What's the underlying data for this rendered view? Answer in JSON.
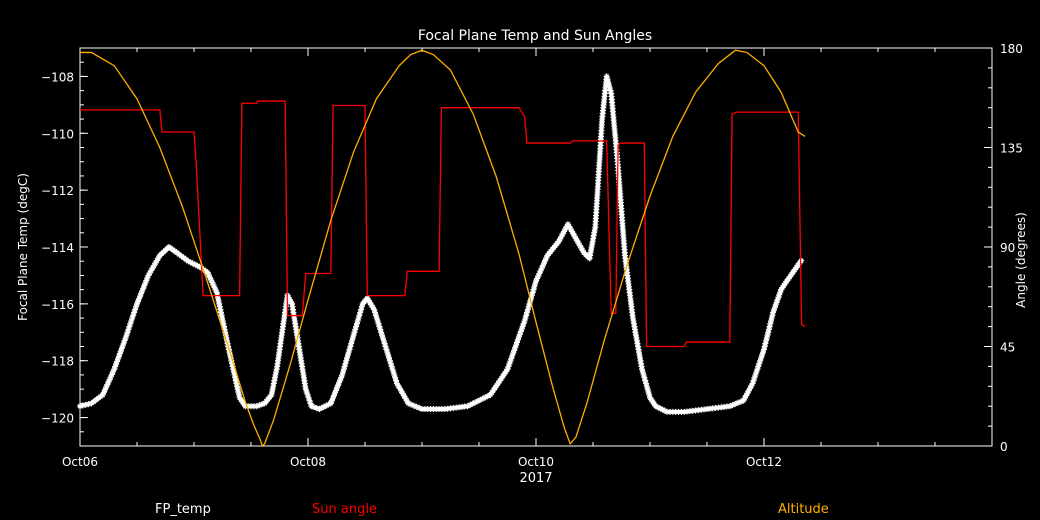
{
  "chart_data": {
    "type": "line",
    "title": "Focal Plane Temp and Sun Angles",
    "xlabel": "2017",
    "ylabel_left": "Focal Plane Temp (degC)",
    "ylabel_right": "Angle (degrees)",
    "xlim": [
      0,
      8
    ],
    "ylim_left": [
      -121,
      -107
    ],
    "ylim_right": [
      0,
      180
    ],
    "x_ticks": [
      {
        "x": 0,
        "label": "Oct06"
      },
      {
        "x": 2,
        "label": "Oct08"
      },
      {
        "x": 4,
        "label": "Oct10"
      },
      {
        "x": 6,
        "label": "Oct12"
      }
    ],
    "y_ticks_left": [
      "-108",
      "-110",
      "-112",
      "-114",
      "-116",
      "-118",
      "-120"
    ],
    "y_ticks_right": [
      "180",
      "135",
      "90",
      "45",
      "0"
    ],
    "series": [
      {
        "name": "FP_temp",
        "axis": "left",
        "color": "#ffffff",
        "marker": "star",
        "points": [
          [
            0,
            -119.6
          ],
          [
            0.1,
            -119.5
          ],
          [
            0.2,
            -119.2
          ],
          [
            0.3,
            -118.3
          ],
          [
            0.4,
            -117.2
          ],
          [
            0.5,
            -116.0
          ],
          [
            0.6,
            -115.0
          ],
          [
            0.7,
            -114.3
          ],
          [
            0.78,
            -114.0
          ],
          [
            0.85,
            -114.2
          ],
          [
            0.95,
            -114.5
          ],
          [
            1.05,
            -114.7
          ],
          [
            1.12,
            -114.9
          ],
          [
            1.2,
            -115.6
          ],
          [
            1.3,
            -117.5
          ],
          [
            1.4,
            -119.3
          ],
          [
            1.45,
            -119.6
          ],
          [
            1.55,
            -119.6
          ],
          [
            1.62,
            -119.5
          ],
          [
            1.68,
            -119.2
          ],
          [
            1.73,
            -118.2
          ],
          [
            1.78,
            -116.8
          ],
          [
            1.82,
            -115.7
          ],
          [
            1.86,
            -116.0
          ],
          [
            1.92,
            -117.5
          ],
          [
            1.98,
            -119.0
          ],
          [
            2.03,
            -119.6
          ],
          [
            2.1,
            -119.7
          ],
          [
            2.2,
            -119.5
          ],
          [
            2.3,
            -118.5
          ],
          [
            2.4,
            -117.1
          ],
          [
            2.48,
            -116.0
          ],
          [
            2.52,
            -115.8
          ],
          [
            2.58,
            -116.2
          ],
          [
            2.68,
            -117.5
          ],
          [
            2.78,
            -118.8
          ],
          [
            2.88,
            -119.5
          ],
          [
            3.0,
            -119.7
          ],
          [
            3.2,
            -119.7
          ],
          [
            3.4,
            -119.6
          ],
          [
            3.6,
            -119.2
          ],
          [
            3.75,
            -118.3
          ],
          [
            3.9,
            -116.6
          ],
          [
            4.0,
            -115.2
          ],
          [
            4.1,
            -114.3
          ],
          [
            4.2,
            -113.8
          ],
          [
            4.28,
            -113.2
          ],
          [
            4.35,
            -113.7
          ],
          [
            4.42,
            -114.2
          ],
          [
            4.47,
            -114.4
          ],
          [
            4.52,
            -113.3
          ],
          [
            4.58,
            -109.5
          ],
          [
            4.62,
            -108.0
          ],
          [
            4.66,
            -108.6
          ],
          [
            4.72,
            -111.2
          ],
          [
            4.78,
            -114.3
          ],
          [
            4.85,
            -116.5
          ],
          [
            4.93,
            -118.3
          ],
          [
            5.0,
            -119.3
          ],
          [
            5.05,
            -119.6
          ],
          [
            5.15,
            -119.8
          ],
          [
            5.3,
            -119.8
          ],
          [
            5.5,
            -119.7
          ],
          [
            5.7,
            -119.6
          ],
          [
            5.82,
            -119.4
          ],
          [
            5.9,
            -118.8
          ],
          [
            6.0,
            -117.6
          ],
          [
            6.08,
            -116.3
          ],
          [
            6.15,
            -115.5
          ],
          [
            6.2,
            -115.2
          ],
          [
            6.27,
            -114.8
          ],
          [
            6.34,
            -114.4
          ]
        ]
      },
      {
        "name": "Sun angle",
        "axis": "right",
        "color": "#ff0000",
        "points": [
          [
            0,
            152
          ],
          [
            0.7,
            152
          ],
          [
            0.7,
            152
          ],
          [
            0.72,
            142
          ],
          [
            1.0,
            142
          ],
          [
            1.02,
            127
          ],
          [
            1.08,
            68
          ],
          [
            1.4,
            68
          ],
          [
            1.42,
            155
          ],
          [
            1.55,
            155
          ],
          [
            1.56,
            156
          ],
          [
            1.8,
            156
          ],
          [
            1.82,
            59
          ],
          [
            1.95,
            59
          ],
          [
            1.98,
            78
          ],
          [
            2.2,
            78
          ],
          [
            2.22,
            154
          ],
          [
            2.5,
            154
          ],
          [
            2.52,
            68
          ],
          [
            2.85,
            68
          ],
          [
            2.87,
            79
          ],
          [
            3.15,
            79
          ],
          [
            3.17,
            153
          ],
          [
            3.85,
            153
          ],
          [
            3.9,
            149
          ],
          [
            3.92,
            137
          ],
          [
            4.3,
            137
          ],
          [
            4.32,
            138
          ],
          [
            4.62,
            138
          ],
          [
            4.64,
            98
          ],
          [
            4.66,
            60
          ],
          [
            4.7,
            60
          ],
          [
            4.72,
            136
          ],
          [
            4.74,
            137
          ],
          [
            4.95,
            137
          ],
          [
            4.97,
            45
          ],
          [
            5.3,
            45
          ],
          [
            5.32,
            47
          ],
          [
            5.7,
            47
          ],
          [
            5.72,
            150
          ],
          [
            5.76,
            151
          ],
          [
            6.3,
            151
          ],
          [
            6.33,
            55
          ],
          [
            6.36,
            54
          ]
        ]
      },
      {
        "name": "Altitude",
        "axis": "right",
        "color": "#ffb000",
        "points": [
          [
            0,
            178
          ],
          [
            0.1,
            178
          ],
          [
            0.3,
            172
          ],
          [
            0.5,
            157
          ],
          [
            0.7,
            135
          ],
          [
            0.9,
            108
          ],
          [
            1.1,
            77
          ],
          [
            1.3,
            45
          ],
          [
            1.45,
            20
          ],
          [
            1.52,
            10
          ],
          [
            1.58,
            3
          ],
          [
            1.6,
            0
          ],
          [
            1.62,
            1
          ],
          [
            1.7,
            12
          ],
          [
            1.85,
            38
          ],
          [
            2.0,
            66
          ],
          [
            2.2,
            102
          ],
          [
            2.4,
            133
          ],
          [
            2.6,
            157
          ],
          [
            2.8,
            172
          ],
          [
            2.9,
            177
          ],
          [
            3.0,
            179
          ],
          [
            3.1,
            177
          ],
          [
            3.25,
            170
          ],
          [
            3.45,
            150
          ],
          [
            3.65,
            122
          ],
          [
            3.85,
            87
          ],
          [
            4.0,
            56
          ],
          [
            4.15,
            26
          ],
          [
            4.25,
            8
          ],
          [
            4.3,
            1
          ],
          [
            4.35,
            4
          ],
          [
            4.45,
            20
          ],
          [
            4.6,
            48
          ],
          [
            4.8,
            82
          ],
          [
            5.0,
            113
          ],
          [
            5.2,
            140
          ],
          [
            5.4,
            160
          ],
          [
            5.6,
            173
          ],
          [
            5.75,
            179
          ],
          [
            5.85,
            178
          ],
          [
            6.0,
            172
          ],
          [
            6.15,
            160
          ],
          [
            6.3,
            142
          ],
          [
            6.36,
            140
          ]
        ]
      }
    ],
    "legend": [
      "FP_temp",
      "Sun angle",
      "Altitude"
    ]
  }
}
